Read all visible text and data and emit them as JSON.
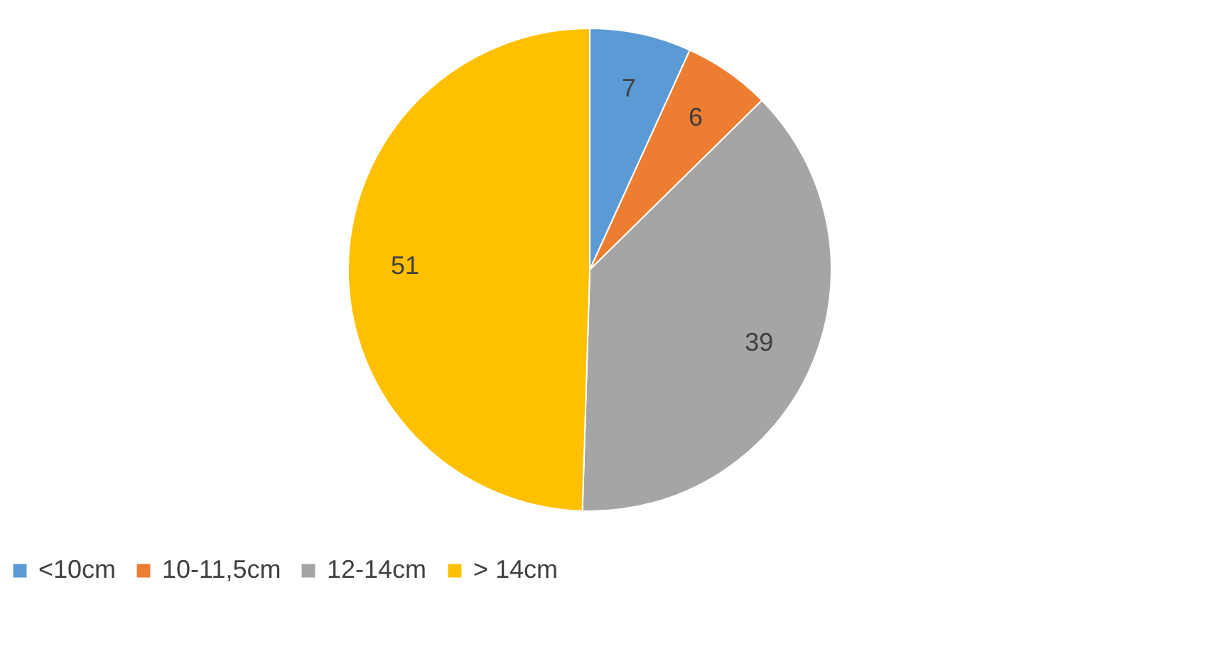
{
  "chart_data": {
    "type": "pie",
    "categories": [
      "<10cm",
      "10-11,5cm",
      "12-14cm",
      "> 14cm"
    ],
    "values": [
      7,
      6,
      39,
      51
    ],
    "colors": [
      "#5b9bd5",
      "#ed7d31",
      "#a5a5a5",
      "#ffc000"
    ],
    "data_labels": true,
    "legend": "bottom"
  }
}
